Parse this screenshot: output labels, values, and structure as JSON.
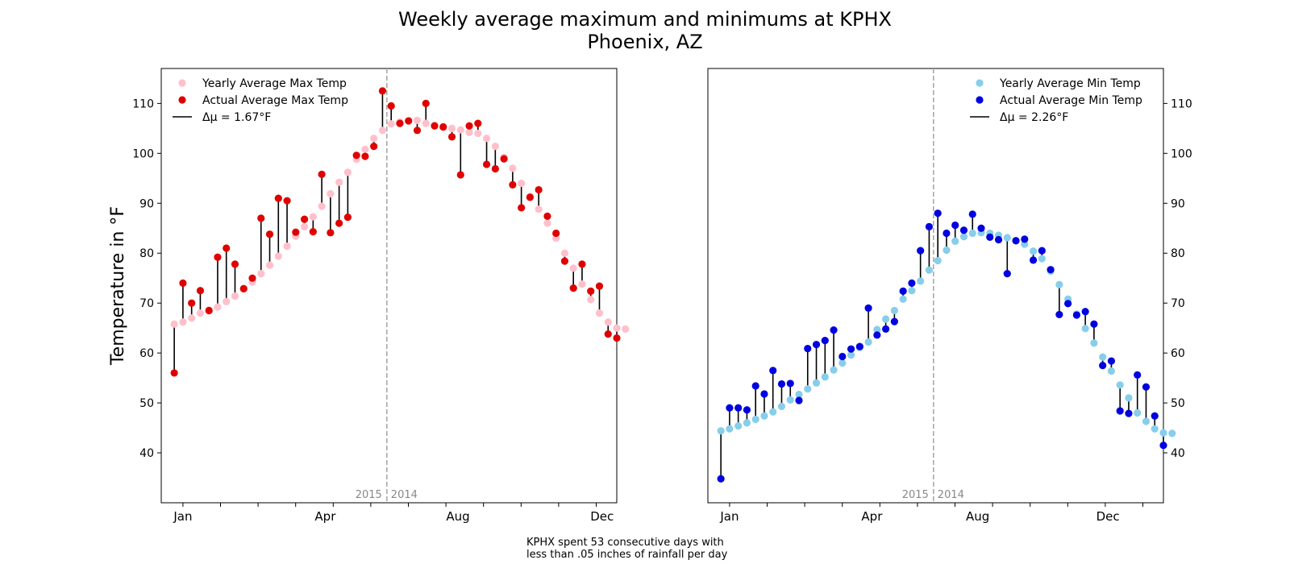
{
  "figure": {
    "title_line1": "Weekly average maximum and minimums at KPHX",
    "title_line2": "Phoenix, AZ",
    "caption_line1": "KPHX spent 53 consecutive days with",
    "caption_line2": "less than .05 inches of rainfall per day",
    "colors": {
      "max_avg": "#ffc0cb",
      "max_actual": "#e00000",
      "min_avg": "#87ceeb",
      "min_actual": "#0000e0",
      "divider": "#aaaaaa",
      "stem": "#000000"
    }
  },
  "chart_data": [
    {
      "type": "scatter",
      "panel": "left",
      "ylabel": "Temperature in °F",
      "yticks": [
        40,
        50,
        60,
        70,
        80,
        90,
        100,
        110
      ],
      "ylim": [
        30,
        117
      ],
      "xticks_labels": [
        "Jan",
        "Apr",
        "Aug",
        "Dec"
      ],
      "xticks_weeks": [
        1,
        17.4,
        32.7,
        49.3
      ],
      "xlim": [
        -1.5,
        51
      ],
      "divider_week": 24.5,
      "divider_labels": [
        "2015",
        "2014"
      ],
      "legend_position": "top-left",
      "legend": [
        "Yearly Average Max Temp",
        "Actual Average Max Temp",
        "Δμ = 1.67°F"
      ],
      "series": [
        {
          "name": "Yearly Average Max Temp",
          "values": [
            65.8,
            66.2,
            67,
            68,
            68.6,
            69.2,
            70.3,
            71.4,
            72.8,
            74.2,
            75.9,
            77.6,
            79.4,
            81.4,
            83.4,
            85.3,
            87.3,
            89.4,
            91.9,
            94.2,
            96.2,
            98.8,
            100.8,
            103,
            104.6,
            105.9,
            106.3,
            106.5,
            106.6,
            106,
            105.6,
            105.2,
            105,
            104.7,
            104.2,
            104,
            103,
            101.4,
            99.2,
            97,
            94,
            91.4,
            88.8,
            86,
            83,
            80,
            77,
            73.8,
            70.7,
            68,
            66.2,
            65,
            64.8
          ]
        },
        {
          "name": "Actual Average Max Temp",
          "values": [
            56,
            74,
            70,
            72.5,
            68.5,
            79.2,
            81,
            77.8,
            72.9,
            75,
            87,
            83.8,
            91,
            90.5,
            84.2,
            86.8,
            84.3,
            95.8,
            84.1,
            86,
            87.2,
            99.6,
            99.4,
            101.4,
            112.5,
            109.5,
            106,
            106.5,
            104.6,
            110,
            105.5,
            105.3,
            103.3,
            95.7,
            105.5,
            106,
            97.8,
            96.9,
            98.9,
            93.7,
            89.1,
            91.2,
            92.7,
            87.4,
            84,
            78.4,
            73,
            77.8,
            72.4,
            73.4,
            63.8,
            63
          ]
        }
      ]
    },
    {
      "type": "scatter",
      "panel": "right",
      "yticks": [
        40,
        50,
        60,
        70,
        80,
        90,
        100,
        110
      ],
      "ylim": [
        30,
        117
      ],
      "xticks_labels": [
        "Jan",
        "Apr",
        "Aug",
        "Dec"
      ],
      "xticks_weeks": [
        1,
        17.4,
        29.6,
        44.6
      ],
      "xlim": [
        -1.5,
        51
      ],
      "divider_week": 24.5,
      "divider_labels": [
        "2015",
        "2014"
      ],
      "legend_position": "top-right",
      "legend": [
        "Yearly Average Min Temp",
        "Actual Average Min Temp",
        "Δμ = 2.26°F"
      ],
      "series": [
        {
          "name": "Yearly Average Min Temp",
          "values": [
            44.4,
            44.8,
            45.4,
            46,
            46.7,
            47.4,
            48.2,
            49.3,
            50.6,
            51.7,
            52.8,
            54,
            55.2,
            56.6,
            58,
            59.6,
            61.1,
            62.2,
            64.7,
            66.8,
            68.5,
            70.8,
            72.5,
            74.4,
            76.6,
            78.5,
            80.6,
            82.4,
            83.3,
            84,
            84.1,
            84,
            83.6,
            83.1,
            82.5,
            81.8,
            80.4,
            78.9,
            76.4,
            73.7,
            70.8,
            67.8,
            64.9,
            62,
            59.2,
            56.4,
            53.6,
            51,
            48,
            46.3,
            44.8,
            44,
            43.9
          ]
        },
        {
          "name": "Actual Average Min Temp",
          "values": [
            34.8,
            49,
            49,
            48.6,
            53.4,
            51.8,
            56.5,
            53.8,
            53.9,
            50.5,
            60.9,
            61.7,
            62.5,
            64.6,
            59.3,
            60.8,
            61.3,
            69,
            63.6,
            64.8,
            66.3,
            72.4,
            74,
            80.5,
            85.3,
            88,
            84,
            85.6,
            84.6,
            87.8,
            85,
            83.2,
            82.7,
            75.9,
            82.5,
            82.8,
            78.6,
            80.5,
            76.7,
            67.7,
            69.9,
            67.6,
            68.3,
            65.8,
            57.5,
            58.4,
            48.4,
            47.9,
            55.6,
            53.2,
            47.4,
            41.5
          ]
        }
      ]
    }
  ]
}
